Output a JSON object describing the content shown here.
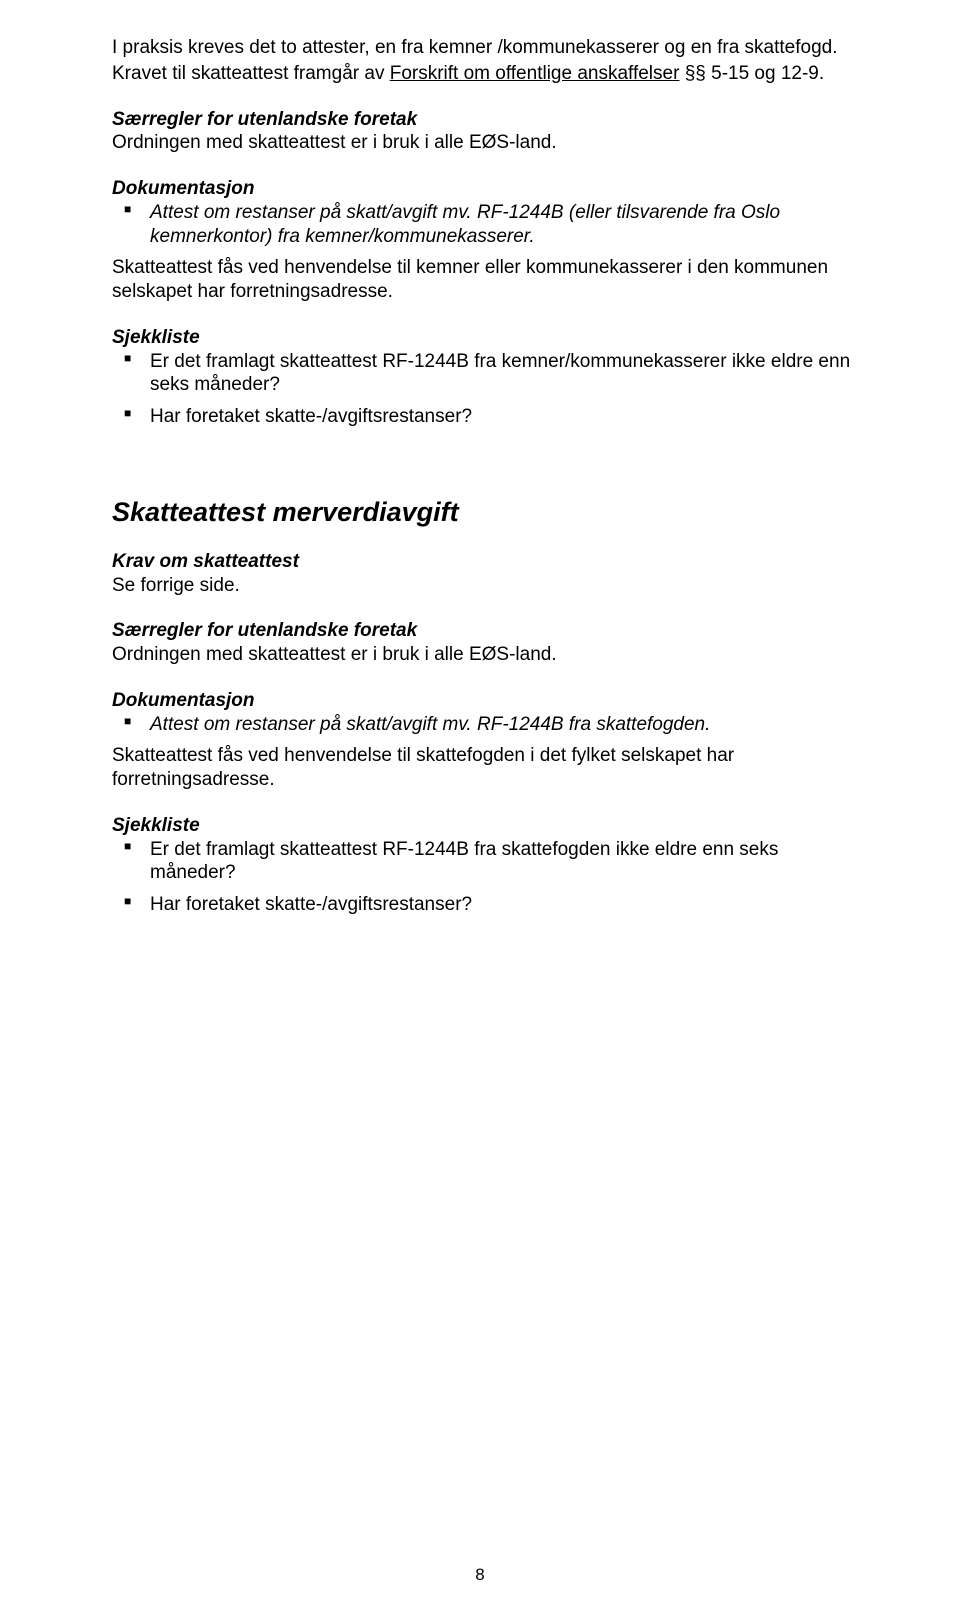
{
  "p1_a": "I praksis kreves det to attester, en fra kemner /kommunekasserer og en fra skattefogd.",
  "p1_b_pre": "Kravet til skatteattest framgår av ",
  "p1_b_link": "Forskrift om offentlige anskaffelser",
  "p1_b_post": " §§ 5-15 og 12-9.",
  "sub1": "Særregler for utenlandske foretak",
  "p2": "Ordningen med skatteattest er i bruk i alle EØS-land.",
  "doklabel": "Dokumentasjon",
  "li1": "Attest om restanser på skatt/avgift mv. RF-1244B (eller tilsvarende fra Oslo kemnerkontor) fra kemner/kommunekasserer.",
  "p3": "Skatteattest fås ved henvendelse til kemner eller kommunekasserer i den kommunen selskapet har forretningsadresse.",
  "sjekk": "Sjekkliste",
  "li2a": "Er det framlagt skatteattest RF-1244B fra kemner/kommunekasserer ikke eldre enn seks måneder?",
  "li2b": "Har foretaket skatte-/avgiftsrestanser?",
  "h2": "Skatteattest merverdiavgift",
  "sub2": "Krav om skatteattest",
  "p4": "Se forrige side.",
  "sub3": "Særregler for utenlandske foretak",
  "p5": "Ordningen med skatteattest er i bruk i alle EØS-land.",
  "li3": "Attest om restanser på skatt/avgift mv. RF-1244B fra skattefogden.",
  "p6": "Skatteattest fås ved henvendelse til skattefogden i det fylket selskapet har forretningsadresse.",
  "li4a": "Er det framlagt skatteattest RF-1244B fra skattefogden ikke eldre enn seks måneder?",
  "li4b": "Har foretaket skatte-/avgiftsrestanser?",
  "pagenum": "8"
}
